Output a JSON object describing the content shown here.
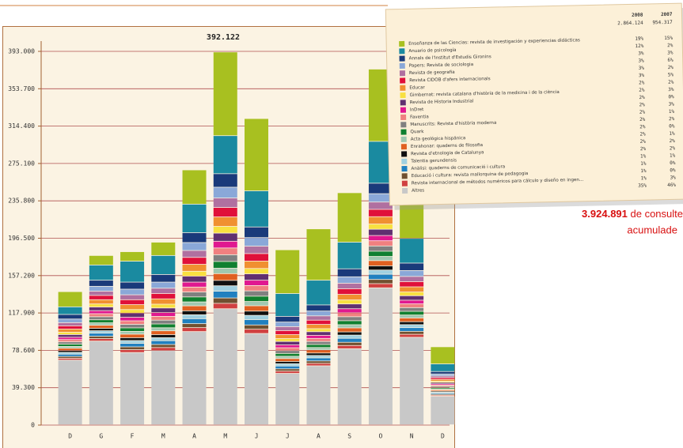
{
  "chart_data": {
    "type": "stacked_bar",
    "title": "392.122",
    "categories": [
      "D",
      "G",
      "F",
      "M",
      "A",
      "M",
      "J",
      "J",
      "A",
      "S",
      "O",
      "N",
      "D"
    ],
    "ylim": [
      0,
      393000
    ],
    "yticks": [
      0,
      {
        "value": 39300,
        "label": "39.300"
      },
      {
        "value": 78600,
        "label": "78.600"
      },
      {
        "value": 117900,
        "label": "117.900"
      },
      {
        "value": 157200,
        "label": "157.200"
      },
      {
        "value": 196500,
        "label": "196.500"
      },
      {
        "value": 235800,
        "label": "235.800"
      },
      {
        "value": 275100,
        "label": "275.100"
      },
      {
        "value": 314400,
        "label": "314.400"
      },
      {
        "value": 353700,
        "label": "353.700"
      },
      {
        "value": 393000,
        "label": "393.000"
      }
    ],
    "grid": true,
    "legend": {
      "columns": [
        "2008",
        "2007"
      ],
      "totals": [
        "2.864.124",
        "954.317"
      ]
    },
    "total_note": {
      "value": "3.924.891",
      "text": " de consulte",
      "text2": "acumulade"
    },
    "series": [
      {
        "name": "Enseñanza de las Ciencias: revista de investigación y experiencias didácticas",
        "color": "#a8c020",
        "share_2008": "19%",
        "share_2007": "15%",
        "values": [
          16000,
          10000,
          10000,
          14000,
          36000,
          88000,
          76000,
          46000,
          54000,
          52000,
          76000,
          44000,
          18000
        ]
      },
      {
        "name": "Anuario de psicología",
        "color": "#1a8aa0",
        "share_2008": "12%",
        "share_2007": "2%",
        "values": [
          8000,
          16000,
          22000,
          20000,
          30000,
          40000,
          38000,
          24000,
          26000,
          28000,
          44000,
          26000,
          8000
        ]
      },
      {
        "name": "Annals de l'Institut d'Estudis Gironins",
        "color": "#1a3a7a",
        "share_2008": "3%",
        "share_2007": "3%",
        "values": [
          4800,
          6400,
          7400,
          8000,
          10400,
          14200,
          11200,
          6000,
          6400,
          8400,
          11000,
          7800,
          2600
        ]
      },
      {
        "name": "Papers: Revista de sociologia",
        "color": "#8aa8d8",
        "share_2008": "3%",
        "share_2007": "6%",
        "values": [
          3840,
          5120,
          5920,
          6400,
          8320,
          11360,
          8960,
          4800,
          5120,
          6720,
          8800,
          6240,
          2080
        ]
      },
      {
        "name": "Revista de geografia",
        "color": "#b070a0",
        "share_2008": "3%",
        "share_2007": "2%",
        "values": [
          3360,
          4480,
          5180,
          5600,
          7280,
          9940,
          7840,
          4200,
          4480,
          5880,
          7700,
          5460,
          1820
        ]
      },
      {
        "name": "Revista CIDOB d'afers internacionals",
        "color": "#e0103a",
        "share_2008": "3%",
        "share_2007": "5%",
        "values": [
          3360,
          4480,
          5180,
          5600,
          7280,
          9940,
          7840,
          4200,
          4480,
          5880,
          7700,
          5460,
          1820
        ]
      },
      {
        "name": "Educar",
        "color": "#f09030",
        "share_2008": "2%",
        "share_2007": "2%",
        "values": [
          3360,
          4480,
          5180,
          5600,
          7280,
          9940,
          7840,
          4200,
          4480,
          5880,
          7700,
          5460,
          1820
        ]
      },
      {
        "name": "Gimbernat: revista catalana d'història de la medicina i de la ciència",
        "color": "#f8e040",
        "share_2008": "2%",
        "share_2007": "3%",
        "values": [
          2400,
          3200,
          3700,
          4000,
          5200,
          7100,
          5600,
          3000,
          3200,
          4200,
          5500,
          3900,
          1300
        ]
      },
      {
        "name": "Revista de Historia Industrial",
        "color": "#603070",
        "share_2008": "2%",
        "share_2007": "0%",
        "values": [
          2880,
          3840,
          4440,
          4800,
          6240,
          8520,
          6720,
          3600,
          3840,
          5040,
          6600,
          4680,
          1560
        ]
      },
      {
        "name": "InDret",
        "color": "#e01890",
        "share_2008": "2%",
        "share_2007": "3%",
        "values": [
          2400,
          3200,
          3700,
          4000,
          5200,
          7100,
          5600,
          3000,
          3200,
          4200,
          5500,
          3900,
          1300
        ]
      },
      {
        "name": "Faventia",
        "color": "#f08080",
        "share_2008": "2%",
        "share_2007": "1%",
        "values": [
          2400,
          3200,
          3700,
          4000,
          5200,
          7100,
          5600,
          3000,
          3200,
          4200,
          5500,
          3900,
          1300
        ]
      },
      {
        "name": "Manuscrits: Revista d'història moderna",
        "color": "#808080",
        "share_2008": "2%",
        "share_2007": "2%",
        "values": [
          2400,
          3200,
          3700,
          4000,
          5200,
          7100,
          5600,
          3000,
          3200,
          4200,
          5500,
          3900,
          1300
        ]
      },
      {
        "name": "Quark",
        "color": "#108030",
        "share_2008": "2%",
        "share_2007": "0%",
        "values": [
          2400,
          3200,
          3700,
          4000,
          5200,
          7100,
          5600,
          3000,
          3200,
          4200,
          5500,
          3900,
          1300
        ]
      },
      {
        "name": "Acta geológica hispánica",
        "color": "#a0c8b0",
        "share_2008": "2%",
        "share_2007": "1%",
        "values": [
          1920,
          2560,
          2960,
          3200,
          4160,
          5680,
          4480,
          2400,
          2560,
          3360,
          4400,
          3120,
          1040
        ]
      },
      {
        "name": "Enrahonar: quaderns de filosofia",
        "color": "#e06020",
        "share_2008": "2%",
        "share_2007": "2%",
        "values": [
          2400,
          3200,
          3700,
          4000,
          5200,
          7100,
          5600,
          3000,
          3200,
          4200,
          5500,
          3900,
          1300
        ]
      },
      {
        "name": "Revista d'etnologia de Catalunya",
        "color": "#101010",
        "share_2008": "2%",
        "share_2007": "2%",
        "values": [
          1920,
          2560,
          2960,
          3200,
          4160,
          5680,
          4480,
          2400,
          2560,
          3360,
          4400,
          3120,
          1040
        ]
      },
      {
        "name": "Talentia gerundensis",
        "color": "#a0d0e0",
        "share_2008": "1%",
        "share_2007": "1%",
        "values": [
          1920,
          2560,
          2960,
          3200,
          4160,
          5680,
          4480,
          2400,
          2560,
          3360,
          4400,
          3120,
          1040
        ]
      },
      {
        "name": "Anàlisi: quaderns de comunicació i cultura",
        "color": "#2080c0",
        "share_2008": "1%",
        "share_2007": "0%",
        "values": [
          2400,
          3200,
          3700,
          4000,
          5200,
          7100,
          5600,
          3000,
          3200,
          4200,
          5500,
          3900,
          1300
        ]
      },
      {
        "name": "Educació i cultura: revista mallorquina de pedagogia",
        "color": "#705030",
        "share_2008": "1%",
        "share_2007": "0%",
        "values": [
          1920,
          2560,
          2960,
          3200,
          4160,
          5680,
          4480,
          2400,
          2560,
          3360,
          4400,
          3120,
          1040
        ]
      },
      {
        "name": "Revista internacional de métodos numéricos para cálculo y diseño en ingen...",
        "color": "#d04040",
        "share_2008": "1%",
        "share_2007": "3%",
        "values": [
          1920,
          2560,
          2960,
          3200,
          4160,
          5680,
          4480,
          2400,
          2560,
          3360,
          4400,
          3120,
          1040
        ]
      },
      {
        "name": "Altres",
        "color": "#c8c8c8",
        "share_2008": "35%",
        "share_2007": "46%",
        "values": [
          68000,
          88000,
          76000,
          78000,
          98000,
          122000,
          96000,
          54000,
          62000,
          80000,
          144000,
          92000,
          30000
        ]
      }
    ]
  }
}
